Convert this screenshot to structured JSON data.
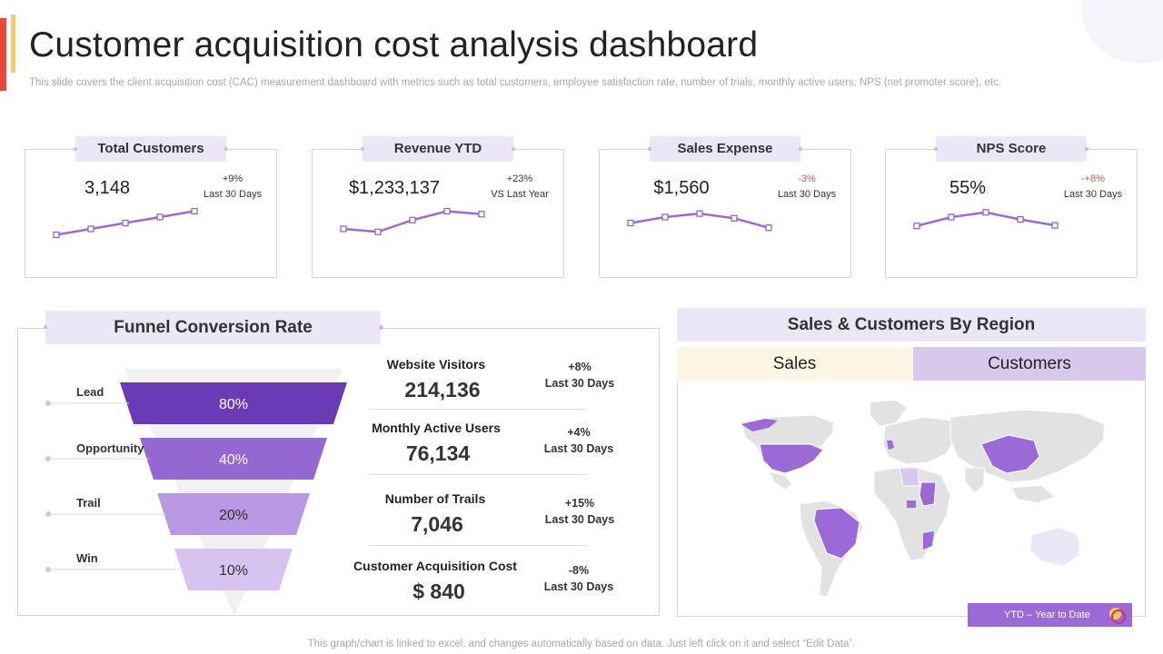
{
  "title": "Customer acquisition cost analysis dashboard",
  "subtitle": "This slide covers the client acquisition cost (CAC) measurement dashboard with metrics such as total customers, employee satisfaction rate, number of trials, monthly active users, NPS (net promoter score), etc.",
  "kpis": [
    {
      "label": "Total Customers",
      "value": "3,148",
      "change": "+9%",
      "period": "Last 30 Days",
      "negative": false,
      "trend": [
        1,
        2,
        3,
        4,
        5
      ]
    },
    {
      "label": "Revenue YTD",
      "value": "$1,233,137",
      "change": "+23%",
      "period": "VS Last Year",
      "negative": false,
      "trend": [
        2,
        1.5,
        3.5,
        5,
        4.5
      ]
    },
    {
      "label": "Sales Expense",
      "value": "$1,560",
      "change": "-3%",
      "period": "Last 30 Days",
      "negative": true,
      "trend": [
        3,
        4,
        4.6,
        3.8,
        2.2
      ]
    },
    {
      "label": "NPS Score",
      "value": "55%",
      "change": "-+8%",
      "period": "Last 30 Days",
      "negative": true,
      "trend": [
        2.5,
        4,
        4.8,
        3.6,
        2.6
      ]
    }
  ],
  "funnel": {
    "header": "Funnel Conversion Rate",
    "stages": [
      {
        "label": "Lead",
        "percent": "80%",
        "value": 80
      },
      {
        "label": "Opportunity",
        "percent": "40%",
        "value": 40
      },
      {
        "label": "Trail",
        "percent": "20%",
        "value": 20
      },
      {
        "label": "Win",
        "percent": "10%",
        "value": 10
      }
    ],
    "colors": [
      "#6a3bb5",
      "#9467d2",
      "#b898e0",
      "#d6c3ef"
    ]
  },
  "metrics": [
    {
      "name": "Website Visitors",
      "value": "214,136",
      "change": "+8%",
      "period": "Last 30 Days"
    },
    {
      "name": "Monthly Active Users",
      "value": "76,134",
      "change": "+4%",
      "period": "Last 30 Days"
    },
    {
      "name": "Number of Trails",
      "value": "7,046",
      "change": "+15%",
      "period": "Last 30 Days"
    },
    {
      "name": "Customer Acquisition Cost",
      "value": "$ 840",
      "change": "-8%",
      "period": "Last 30 Days"
    }
  ],
  "region": {
    "header": "Sales & Customers By Region",
    "tabs": {
      "sales": "Sales",
      "customers": "Customers"
    },
    "active_tab": "customers",
    "highlight_color": "#9b6ad6",
    "base_color": "#e2e2e2",
    "ytd_label": "YTD – Year to Date"
  },
  "footer": "This graph/chart is linked to excel,  and changes automatically based on data. Just left click on it and select “Edit Data”."
}
